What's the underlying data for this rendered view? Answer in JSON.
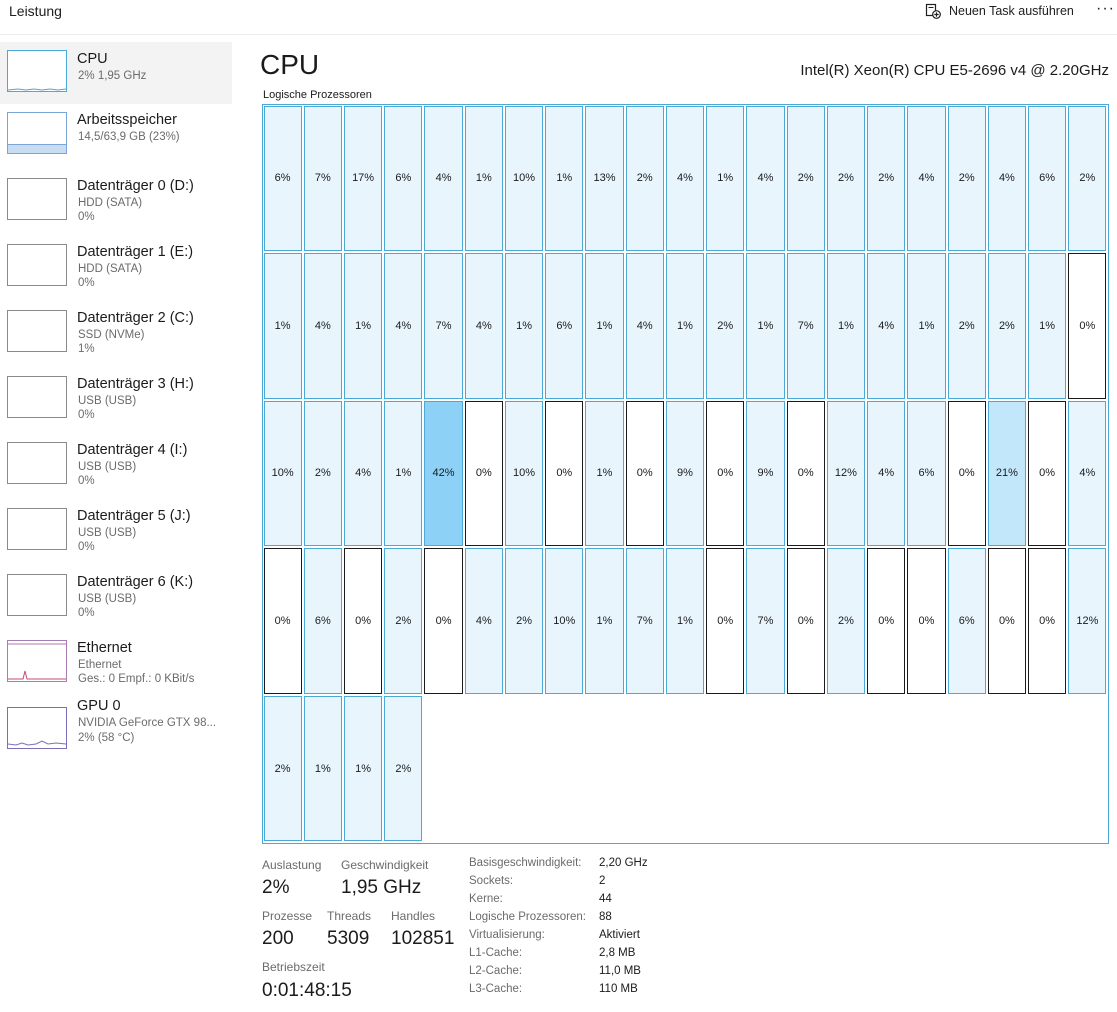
{
  "header": {
    "title": "Leistung",
    "run_task": "Neuen Task ausführen",
    "more": "···"
  },
  "sidebar": {
    "items": [
      {
        "name": "CPU",
        "sub1": "2%  1,95 GHz"
      },
      {
        "name": "Arbeitsspeicher",
        "sub1": "14,5/63,9 GB (23%)"
      },
      {
        "name": "Datenträger 0 (D:)",
        "sub1": "HDD (SATA)",
        "sub2": "0%"
      },
      {
        "name": "Datenträger 1 (E:)",
        "sub1": "HDD (SATA)",
        "sub2": "0%"
      },
      {
        "name": "Datenträger 2 (C:)",
        "sub1": "SSD (NVMe)",
        "sub2": "1%"
      },
      {
        "name": "Datenträger 3 (H:)",
        "sub1": "USB (USB)",
        "sub2": "0%"
      },
      {
        "name": "Datenträger 4 (I:)",
        "sub1": "USB (USB)",
        "sub2": "0%"
      },
      {
        "name": "Datenträger 5 (J:)",
        "sub1": "USB (USB)",
        "sub2": "0%"
      },
      {
        "name": "Datenträger 6 (K:)",
        "sub1": "USB (USB)",
        "sub2": "0%"
      },
      {
        "name": "Ethernet",
        "sub1": "Ethernet",
        "sub2": "Ges.: 0 Empf.: 0 KBit/s"
      },
      {
        "name": "GPU 0",
        "sub1": "NVIDIA GeForce GTX 98...",
        "sub2": "2%  (58 °C)"
      }
    ]
  },
  "main": {
    "title": "CPU",
    "model": "Intel(R) Xeon(R) CPU E5-2696 v4 @ 2.20GHz",
    "grid_label": "Logische Prozessoren",
    "processors": [
      "6%",
      "7%",
      "17%",
      "6%",
      "4%",
      "1%",
      "10%",
      "1%",
      "13%",
      "2%",
      "4%",
      "1%",
      "4%",
      "2%",
      "2%",
      "2%",
      "4%",
      "2%",
      "4%",
      "6%",
      "2%",
      "1%",
      "4%",
      "1%",
      "4%",
      "7%",
      "4%",
      "1%",
      "6%",
      "1%",
      "4%",
      "1%",
      "2%",
      "1%",
      "7%",
      "1%",
      "4%",
      "1%",
      "2%",
      "2%",
      "1%",
      "0%",
      "10%",
      "2%",
      "4%",
      "1%",
      "42%",
      "0%",
      "10%",
      "0%",
      "1%",
      "0%",
      "9%",
      "0%",
      "9%",
      "0%",
      "12%",
      "4%",
      "6%",
      "0%",
      "21%",
      "0%",
      "4%",
      "0%",
      "6%",
      "0%",
      "2%",
      "0%",
      "4%",
      "2%",
      "10%",
      "1%",
      "7%",
      "1%",
      "0%",
      "7%",
      "0%",
      "2%",
      "0%",
      "0%",
      "6%",
      "0%",
      "0%",
      "12%",
      "2%",
      "1%",
      "1%",
      "2%"
    ]
  },
  "stats": {
    "auslastung_label": "Auslastung",
    "auslastung": "2%",
    "geschw_label": "Geschwindigkeit",
    "geschw": "1,95 GHz",
    "prozesse_label": "Prozesse",
    "prozesse": "200",
    "threads_label": "Threads",
    "threads": "5309",
    "handles_label": "Handles",
    "handles": "102851",
    "betriebszeit_label": "Betriebszeit",
    "betriebszeit": "0:01:48:15"
  },
  "specs": [
    {
      "label": "Basisgeschwindigkeit:",
      "value": "2,20 GHz"
    },
    {
      "label": "Sockets:",
      "value": "2"
    },
    {
      "label": "Kerne:",
      "value": "44"
    },
    {
      "label": "Logische Prozessoren:",
      "value": "88"
    },
    {
      "label": "Virtualisierung:",
      "value": "Aktiviert"
    },
    {
      "label": "L1-Cache:",
      "value": "2,8 MB"
    },
    {
      "label": "L2-Cache:",
      "value": "11,0 MB"
    },
    {
      "label": "L3-Cache:",
      "value": "110 MB"
    }
  ],
  "colors": {
    "accent": "#4aa9d6",
    "cell_fill": "#e8f5fd",
    "high_fill": "#8dd1f7",
    "memory_fill": "#c8dcf2"
  }
}
